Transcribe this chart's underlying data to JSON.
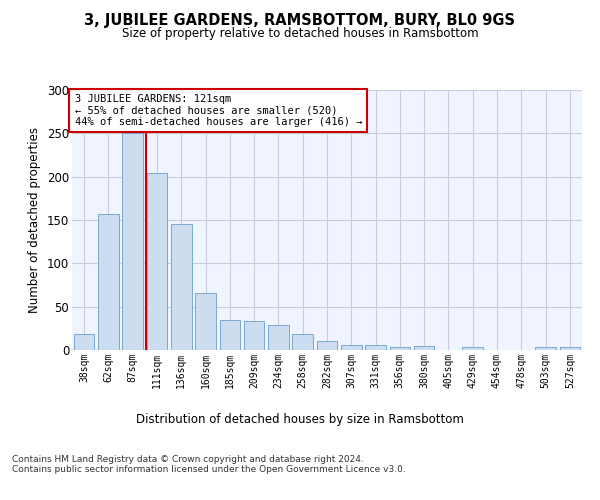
{
  "title": "3, JUBILEE GARDENS, RAMSBOTTOM, BURY, BL0 9GS",
  "subtitle": "Size of property relative to detached houses in Ramsbottom",
  "xlabel": "Distribution of detached houses by size in Ramsbottom",
  "ylabel": "Number of detached properties",
  "categories": [
    "38sqm",
    "62sqm",
    "87sqm",
    "111sqm",
    "136sqm",
    "160sqm",
    "185sqm",
    "209sqm",
    "234sqm",
    "258sqm",
    "282sqm",
    "307sqm",
    "331sqm",
    "356sqm",
    "380sqm",
    "405sqm",
    "429sqm",
    "454sqm",
    "478sqm",
    "503sqm",
    "527sqm"
  ],
  "values": [
    18,
    157,
    250,
    204,
    145,
    66,
    35,
    33,
    29,
    18,
    10,
    6,
    6,
    4,
    5,
    0,
    3,
    0,
    0,
    3,
    3
  ],
  "bar_color": "#ccddf0",
  "bar_edge_color": "#7aaace",
  "highlight_line_color": "#cc0000",
  "annotation_text": "3 JUBILEE GARDENS: 121sqm\n← 55% of detached houses are smaller (520)\n44% of semi-detached houses are larger (416) →",
  "annotation_box_color": "#ffffff",
  "annotation_box_edge": "#cc0000",
  "ylim": [
    0,
    300
  ],
  "yticks": [
    0,
    50,
    100,
    150,
    200,
    250,
    300
  ],
  "footer_text": "Contains HM Land Registry data © Crown copyright and database right 2024.\nContains public sector information licensed under the Open Government Licence v3.0.",
  "bg_color": "#f0f4ff",
  "grid_color": "#c8cce0"
}
